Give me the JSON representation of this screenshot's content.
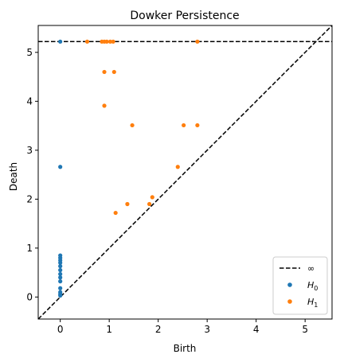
{
  "chart_data": {
    "type": "scatter",
    "title": "Dowker Persistence",
    "xlabel": "Birth",
    "ylabel": "Death",
    "xlim": [
      -0.45,
      5.55
    ],
    "ylim": [
      -0.45,
      5.55
    ],
    "xticks": [
      0,
      1,
      2,
      3,
      4,
      5
    ],
    "yticks": [
      0,
      1,
      2,
      3,
      4,
      5
    ],
    "infinity_line_y": 5.22,
    "diagonal": true,
    "grid": false,
    "legend_position": "lower-right",
    "legend": [
      {
        "label": "∞",
        "style": "dashed-line",
        "color": "#000000"
      },
      {
        "label": "H",
        "sub": "0",
        "style": "point",
        "color": "#1f77b4"
      },
      {
        "label": "H",
        "sub": "1",
        "style": "point",
        "color": "#ff7f0e"
      }
    ],
    "series": [
      {
        "name": "H0",
        "color": "#1f77b4",
        "points": [
          [
            0,
            5.22
          ],
          [
            0,
            2.66
          ],
          [
            0,
            0.85
          ],
          [
            0,
            0.8
          ],
          [
            0,
            0.75
          ],
          [
            0,
            0.7
          ],
          [
            0,
            0.63
          ],
          [
            0,
            0.55
          ],
          [
            0,
            0.47
          ],
          [
            0,
            0.4
          ],
          [
            0,
            0.32
          ],
          [
            0,
            0.18
          ],
          [
            0,
            0.1
          ],
          [
            0,
            0.06
          ],
          [
            0,
            0.03
          ]
        ]
      },
      {
        "name": "H1",
        "color": "#ff7f0e",
        "points": [
          [
            0.55,
            5.22
          ],
          [
            0.85,
            5.22
          ],
          [
            0.9,
            5.22
          ],
          [
            0.95,
            5.22
          ],
          [
            1.02,
            5.22
          ],
          [
            1.08,
            5.22
          ],
          [
            2.8,
            5.22
          ],
          [
            0.9,
            4.6
          ],
          [
            1.1,
            4.6
          ],
          [
            0.9,
            3.91
          ],
          [
            1.47,
            3.51
          ],
          [
            2.52,
            3.51
          ],
          [
            2.8,
            3.51
          ],
          [
            2.4,
            2.66
          ],
          [
            1.88,
            2.04
          ],
          [
            1.82,
            1.9
          ],
          [
            1.37,
            1.9
          ],
          [
            1.13,
            1.72
          ]
        ]
      }
    ]
  }
}
